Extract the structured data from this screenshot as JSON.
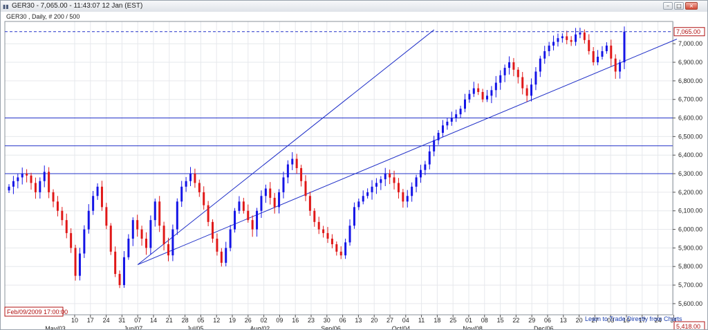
{
  "window": {
    "title": "GER30 - 7,065.00 - 11:43:07  12 Jan (EST)",
    "buttons": [
      "minimize",
      "maximize",
      "close"
    ]
  },
  "chart": {
    "subtitle": "GER30 , Daily, # 200 / 500",
    "date_readout": "Feb/09/2009 17:00:00",
    "current_price_label": "7,065.00",
    "bottom_price_label": "5,418.00",
    "link": "Learn to Trade Directly from Charts",
    "month_labels": [
      "May/03",
      "Jun/07",
      "Jul/05",
      "Aug/02",
      "Sep/06",
      "Oct/04",
      "Nov/08",
      "Dec/06"
    ],
    "colors": {
      "up": "#1414e6",
      "down": "#e01818",
      "hline": "#2030c8",
      "trendline": "#2030c8"
    }
  },
  "chart_data": {
    "type": "candlestick",
    "title": "",
    "xlabel": "",
    "ylabel": "",
    "ylim": [
      5540,
      7120
    ],
    "y_ticks": [
      5600,
      5700,
      5800,
      5900,
      6000,
      6100,
      6200,
      6300,
      6400,
      6500,
      6600,
      6700,
      6800,
      6900,
      7000
    ],
    "y_tick_labels": [
      "5,600.00",
      "5,700.00",
      "5,800.00",
      "5,900.00",
      "6,000.00",
      "6,100.00",
      "6,200.00",
      "6,300.00",
      "6,400.00",
      "6,500.00",
      "6,600.00",
      "6,700.00",
      "6,800.00",
      "6,900.00",
      "7,000.00"
    ],
    "x_tick_labels": [
      "10",
      "17",
      "24",
      "31",
      "07",
      "14",
      "21",
      "28",
      "05",
      "12",
      "19",
      "26",
      "02",
      "09",
      "16",
      "23",
      "30",
      "06",
      "13",
      "20",
      "27",
      "04",
      "11",
      "18",
      "25",
      "01",
      "08",
      "15",
      "22",
      "29",
      "06",
      "13",
      "20",
      "27",
      "03",
      "10",
      "17",
      "24",
      "31"
    ],
    "current_price": 7065,
    "horizontal_lines": [
      6600,
      6450,
      6300
    ],
    "trendlines": [
      {
        "from": [
          4,
          5810
        ],
        "to": [
          22.8,
          7075
        ]
      },
      {
        "from": [
          4,
          5810
        ],
        "to": [
          38.2,
          7025
        ]
      }
    ],
    "closes": [
      6230,
      6260,
      6280,
      6300,
      6290,
      6250,
      6200,
      6260,
      6310,
      6200,
      6150,
      6100,
      6050,
      5980,
      5900,
      5750,
      5870,
      6000,
      6100,
      6180,
      6230,
      6120,
      6020,
      5880,
      5760,
      5700,
      5850,
      5950,
      6050,
      6000,
      5950,
      5900,
      6050,
      6150,
      6020,
      5920,
      5860,
      6000,
      6150,
      6230,
      6260,
      6300,
      6250,
      6200,
      6130,
      6040,
      5950,
      5880,
      5820,
      5900,
      6000,
      6100,
      6150,
      6100,
      6050,
      6000,
      6100,
      6180,
      6220,
      6170,
      6120,
      6200,
      6280,
      6350,
      6380,
      6330,
      6260,
      6180,
      6100,
      6040,
      6000,
      5980,
      5950,
      5920,
      5880,
      5860,
      5930,
      6020,
      6120,
      6150,
      6180,
      6200,
      6230,
      6250,
      6270,
      6300,
      6280,
      6250,
      6200,
      6150,
      6180,
      6230,
      6280,
      6320,
      6350,
      6420,
      6480,
      6520,
      6560,
      6580,
      6600,
      6620,
      6650,
      6700,
      6730,
      6760,
      6740,
      6700,
      6720,
      6750,
      6790,
      6830,
      6870,
      6900,
      6860,
      6820,
      6760,
      6720,
      6780,
      6850,
      6920,
      6960,
      6990,
      7010,
      7030,
      7040,
      7020,
      7010,
      7050,
      7060,
      7020,
      6960,
      6900,
      6930,
      6960,
      6990,
      6920,
      6850,
      6900,
      7065
    ]
  }
}
